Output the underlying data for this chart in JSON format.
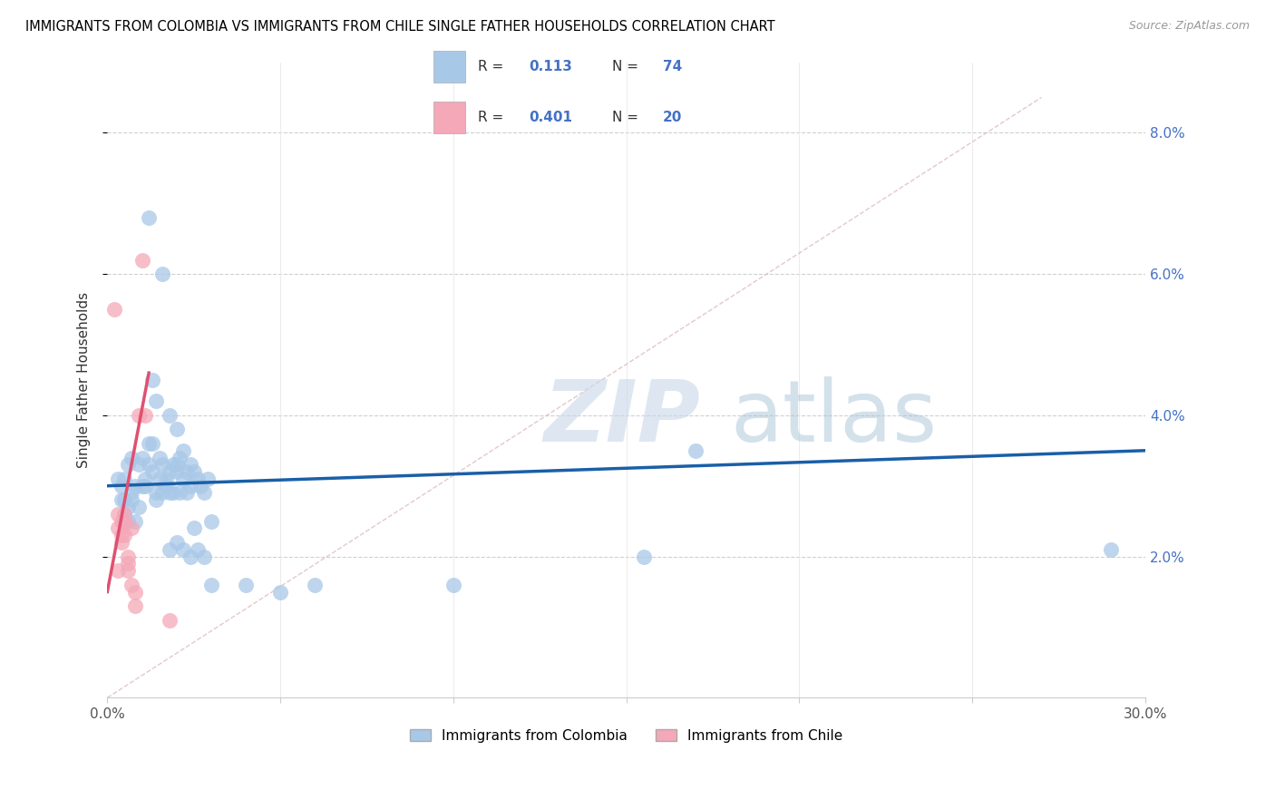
{
  "title": "IMMIGRANTS FROM COLOMBIA VS IMMIGRANTS FROM CHILE SINGLE FATHER HOUSEHOLDS CORRELATION CHART",
  "source": "Source: ZipAtlas.com",
  "ylabel": "Single Father Households",
  "x_min": 0.0,
  "x_max": 0.3,
  "y_min": 0.0,
  "y_max": 0.09,
  "y_ticks": [
    0.02,
    0.04,
    0.06,
    0.08
  ],
  "y_tick_labels": [
    "2.0%",
    "4.0%",
    "6.0%",
    "8.0%"
  ],
  "colombia_color": "#a8c8e8",
  "chile_color": "#f4a8b8",
  "colombia_line_color": "#1a5fa8",
  "chile_line_color": "#e05070",
  "ref_line_color": "#ddbbbb",
  "watermark_zip": "ZIP",
  "watermark_atlas": "atlas",
  "legend_label1": "Immigrants from Colombia",
  "legend_label2": "Immigrants from Chile",
  "legend_text_color": "#4472c4",
  "legend_label_color": "#333333",
  "colombia_points": [
    [
      0.005,
      0.028
    ],
    [
      0.008,
      0.025
    ],
    [
      0.004,
      0.03
    ],
    [
      0.006,
      0.027
    ],
    [
      0.003,
      0.031
    ],
    [
      0.005,
      0.026
    ],
    [
      0.007,
      0.029
    ],
    [
      0.004,
      0.028
    ],
    [
      0.006,
      0.033
    ],
    [
      0.008,
      0.03
    ],
    [
      0.005,
      0.031
    ],
    [
      0.007,
      0.028
    ],
    [
      0.009,
      0.027
    ],
    [
      0.006,
      0.025
    ],
    [
      0.01,
      0.03
    ],
    [
      0.007,
      0.034
    ],
    [
      0.011,
      0.031
    ],
    [
      0.009,
      0.033
    ],
    [
      0.012,
      0.036
    ],
    [
      0.01,
      0.034
    ],
    [
      0.013,
      0.032
    ],
    [
      0.011,
      0.03
    ],
    [
      0.014,
      0.029
    ],
    [
      0.012,
      0.033
    ],
    [
      0.015,
      0.031
    ],
    [
      0.013,
      0.036
    ],
    [
      0.016,
      0.033
    ],
    [
      0.014,
      0.028
    ],
    [
      0.017,
      0.031
    ],
    [
      0.015,
      0.034
    ],
    [
      0.018,
      0.032
    ],
    [
      0.016,
      0.029
    ],
    [
      0.019,
      0.033
    ],
    [
      0.017,
      0.03
    ],
    [
      0.02,
      0.032
    ],
    [
      0.018,
      0.029
    ],
    [
      0.021,
      0.034
    ],
    [
      0.019,
      0.029
    ],
    [
      0.022,
      0.031
    ],
    [
      0.02,
      0.033
    ],
    [
      0.023,
      0.032
    ],
    [
      0.021,
      0.029
    ],
    [
      0.024,
      0.03
    ],
    [
      0.022,
      0.035
    ],
    [
      0.025,
      0.032
    ],
    [
      0.023,
      0.029
    ],
    [
      0.026,
      0.031
    ],
    [
      0.024,
      0.033
    ],
    [
      0.027,
      0.03
    ],
    [
      0.028,
      0.029
    ],
    [
      0.029,
      0.031
    ],
    [
      0.018,
      0.021
    ],
    [
      0.02,
      0.022
    ],
    [
      0.022,
      0.021
    ],
    [
      0.024,
      0.02
    ],
    [
      0.026,
      0.021
    ],
    [
      0.028,
      0.02
    ],
    [
      0.29,
      0.021
    ],
    [
      0.012,
      0.068
    ],
    [
      0.016,
      0.06
    ],
    [
      0.013,
      0.045
    ],
    [
      0.018,
      0.04
    ],
    [
      0.014,
      0.042
    ],
    [
      0.02,
      0.038
    ],
    [
      0.17,
      0.035
    ],
    [
      0.155,
      0.02
    ],
    [
      0.03,
      0.016
    ],
    [
      0.04,
      0.016
    ],
    [
      0.05,
      0.015
    ],
    [
      0.06,
      0.016
    ],
    [
      0.1,
      0.016
    ],
    [
      0.025,
      0.024
    ],
    [
      0.03,
      0.025
    ]
  ],
  "chile_points": [
    [
      0.002,
      0.055
    ],
    [
      0.003,
      0.026
    ],
    [
      0.003,
      0.024
    ],
    [
      0.004,
      0.025
    ],
    [
      0.004,
      0.023
    ],
    [
      0.004,
      0.022
    ],
    [
      0.005,
      0.026
    ],
    [
      0.005,
      0.023
    ],
    [
      0.005,
      0.025
    ],
    [
      0.006,
      0.02
    ],
    [
      0.006,
      0.018
    ],
    [
      0.006,
      0.019
    ],
    [
      0.007,
      0.016
    ],
    [
      0.007,
      0.024
    ],
    [
      0.008,
      0.013
    ],
    [
      0.008,
      0.015
    ],
    [
      0.009,
      0.04
    ],
    [
      0.01,
      0.062
    ],
    [
      0.011,
      0.04
    ],
    [
      0.003,
      0.018
    ],
    [
      0.018,
      0.011
    ]
  ],
  "colombia_trendline": [
    0.0,
    0.03,
    0.3,
    0.035
  ],
  "chile_trendline": [
    0.0,
    0.015,
    0.012,
    0.046
  ],
  "ref_line": [
    0.0,
    0.0,
    0.27,
    0.085
  ]
}
